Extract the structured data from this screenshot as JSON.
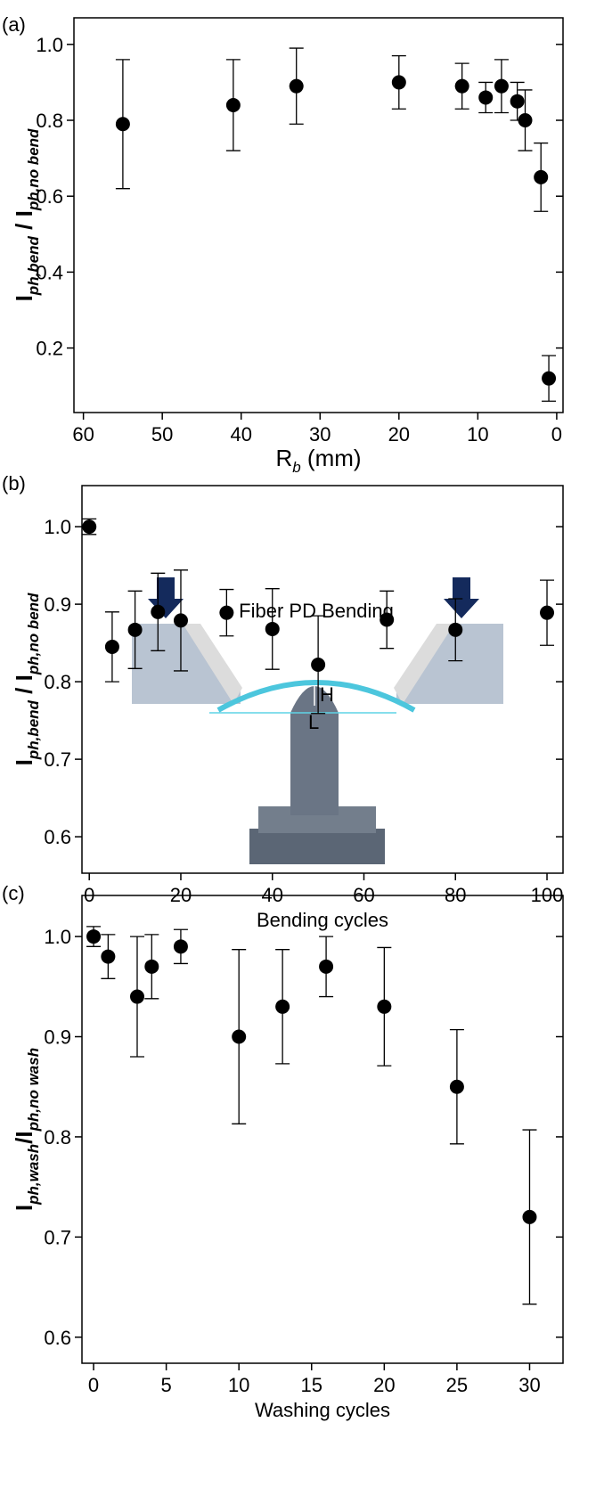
{
  "chart_data": [
    {
      "type": "scatter",
      "panel_label": "(a)",
      "x_label": [
        "R",
        "b",
        " (mm)"
      ],
      "y_label": [
        "I",
        "ph,bend",
        " / I",
        "ph,no bend"
      ],
      "x": [
        55,
        41,
        33,
        20,
        12,
        9,
        7,
        5,
        4,
        2,
        1
      ],
      "values": [
        0.79,
        0.84,
        0.89,
        0.9,
        0.89,
        0.86,
        0.89,
        0.85,
        0.8,
        0.65,
        0.12
      ],
      "errors": [
        0.17,
        0.12,
        0.1,
        0.07,
        0.06,
        0.04,
        0.07,
        0.05,
        0.08,
        0.09,
        0.06
      ],
      "color": "#000000",
      "xlim": [
        61.2,
        -0.8
      ],
      "xticks": [
        60,
        50,
        40,
        30,
        20,
        10,
        0
      ],
      "ylim": [
        0.03,
        1.07
      ],
      "yticks": [
        0.2,
        0.4,
        0.6,
        0.8,
        {
          "value": 1,
          "label": "1.0"
        }
      ]
    },
    {
      "type": "scatter",
      "panel_label": "(b)",
      "x_label": "Bending cycles",
      "y_label": [
        "I",
        "ph,bend",
        " / I",
        "ph,no bend"
      ],
      "x": [
        0,
        5,
        10,
        15,
        20,
        30,
        40,
        50,
        65,
        80,
        100
      ],
      "values": [
        1,
        0.845,
        0.867,
        0.89,
        0.879,
        0.889,
        0.868,
        0.822,
        0.88,
        0.867,
        0.889
      ],
      "errors": [
        0.01,
        0.045,
        0.05,
        0.05,
        0.065,
        0.03,
        0.052,
        0.063,
        0.037,
        0.04,
        0.042
      ],
      "color": "#000000",
      "inset_labels": [
        "Fiber PD Bending",
        "H",
        "L"
      ],
      "xlim": [
        -1.6,
        103.5
      ],
      "xticks": [
        0,
        20,
        40,
        60,
        80,
        100
      ],
      "ylim": [
        0.553,
        1.053
      ],
      "yticks": [
        0.6,
        0.7,
        0.8,
        0.9,
        {
          "value": 1,
          "label": "1.0"
        }
      ]
    },
    {
      "type": "scatter",
      "panel_label": "(c)",
      "x_label": "Washing cycles",
      "y_label": [
        "I",
        "ph,wash",
        "/I",
        "ph,no wash"
      ],
      "x": [
        0,
        1,
        3,
        4,
        6,
        10,
        13,
        16,
        20,
        25,
        30
      ],
      "values": [
        1,
        0.98,
        0.94,
        0.97,
        0.99,
        0.9,
        0.93,
        0.97,
        0.93,
        0.85,
        0.72
      ],
      "errors": [
        0.01,
        0.022,
        0.06,
        0.032,
        0.017,
        0.087,
        0.057,
        0.03,
        0.059,
        0.057,
        0.087
      ],
      "color": "#000000",
      "xlim": [
        -0.8,
        32.3
      ],
      "xticks": [
        0,
        5,
        10,
        15,
        20,
        25,
        30
      ],
      "ylim": [
        0.574,
        1.041
      ],
      "yticks": [
        0.6,
        0.7,
        0.8,
        0.9,
        {
          "value": 1,
          "label": "1.0"
        }
      ]
    }
  ]
}
